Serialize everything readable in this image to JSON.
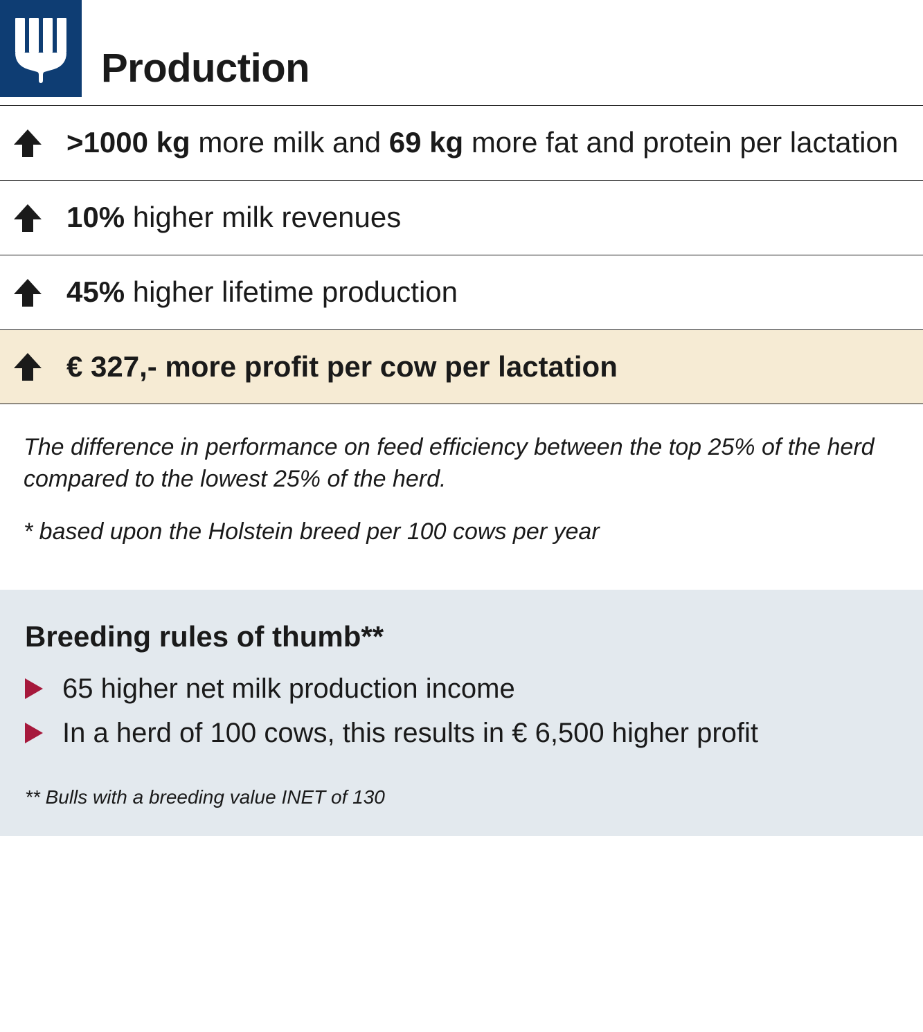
{
  "colors": {
    "logo_bg": "#0e3d73",
    "logo_fg": "#ffffff",
    "text": "#1a1a1a",
    "highlight_bg": "#f6ebd4",
    "rules_bg": "#e3e9ee",
    "triangle": "#a6193c",
    "arrow": "#1a1a1a",
    "border": "#1a1a1a"
  },
  "title": "Production",
  "rows": [
    {
      "highlight": false,
      "segments": [
        {
          "text": ">1000 kg",
          "bold": true
        },
        {
          "text": " more milk and ",
          "bold": false
        },
        {
          "text": "69 kg",
          "bold": true
        },
        {
          "text": " more fat and protein per lactation",
          "bold": false
        }
      ]
    },
    {
      "highlight": false,
      "segments": [
        {
          "text": "10%",
          "bold": true
        },
        {
          "text": " higher milk revenues",
          "bold": false
        }
      ]
    },
    {
      "highlight": false,
      "segments": [
        {
          "text": "45%",
          "bold": true
        },
        {
          "text": " higher lifetime production",
          "bold": false
        }
      ]
    },
    {
      "highlight": true,
      "segments": [
        {
          "text": "€ 327,-  more profit per cow per lactation",
          "bold": true
        }
      ]
    }
  ],
  "notes": {
    "line1": "The difference in performance on feed efficiency between the top 25% of the herd compared to the lowest 25% of the herd.",
    "line2": "* based upon the Holstein breed per 100 cows per year"
  },
  "rules": {
    "title": "Breeding rules of thumb**",
    "items": [
      "65 higher net milk production income",
      "In a herd of 100 cows, this results in € 6,500 higher profit"
    ],
    "footnote": "** Bulls with a breeding value INET of 130"
  }
}
